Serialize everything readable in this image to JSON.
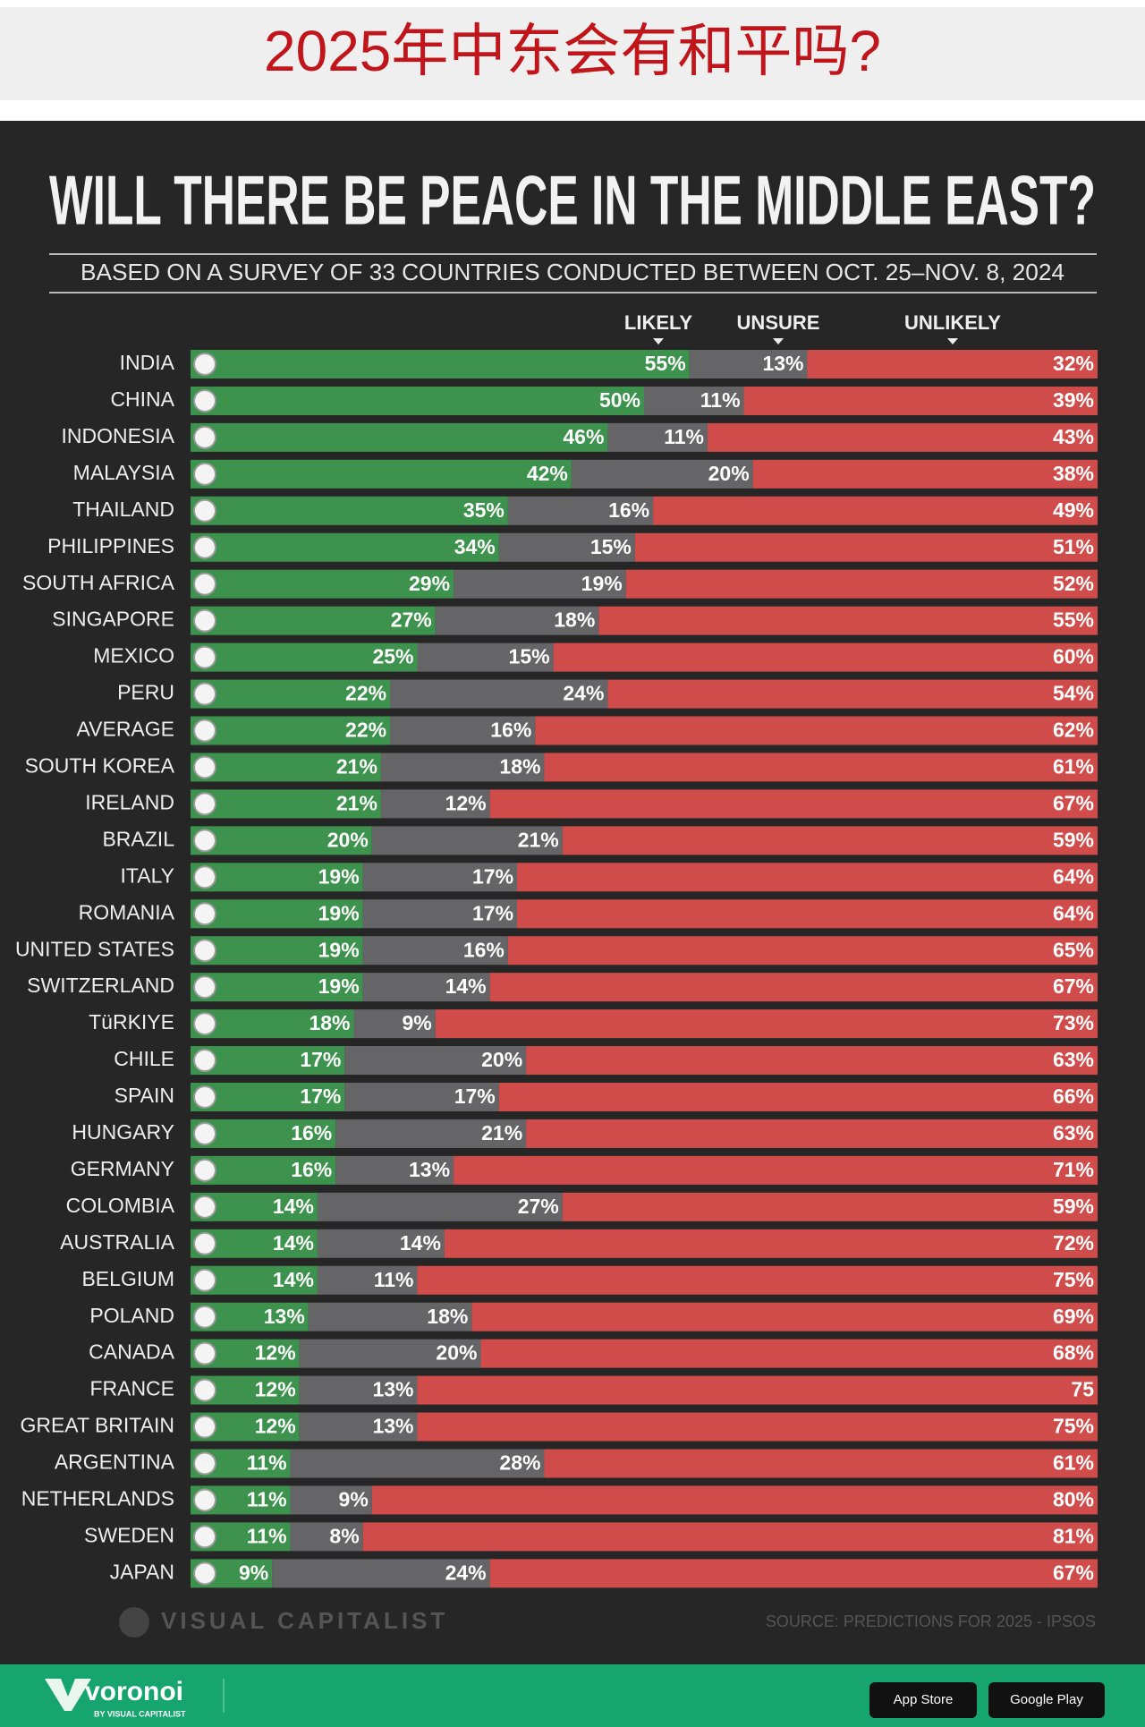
{
  "header": {
    "title": "2025年中东会有和平吗?"
  },
  "chart_data": {
    "type": "stacked-bar-horizontal",
    "title": "WILL THERE BE PEACE IN THE MIDDLE EAST?",
    "subtitle": "BASED ON A SURVEY OF 33 COUNTRIES CONDUCTED BETWEEN OCT. 25–NOV. 8, 2024",
    "source": "SOURCE: PREDICTIONS FOR 2025 - IPSOS",
    "brand": "VISUAL CAPITALIST",
    "xlim": [
      0,
      100
    ],
    "categories": [
      "INDIA",
      "CHINA",
      "INDONESIA",
      "MALAYSIA",
      "THAILAND",
      "PHILIPPINES",
      "SOUTH AFRICA",
      "SINGAPORE",
      "MEXICO",
      "PERU",
      "AVERAGE",
      "SOUTH KOREA",
      "IRELAND",
      "BRAZIL",
      "ITALY",
      "ROMANIA",
      "UNITED STATES",
      "SWITZERLAND",
      "TüRKIYE",
      "CHILE",
      "SPAIN",
      "HUNGARY",
      "GERMANY",
      "COLOMBIA",
      "AUSTRALIA",
      "BELGIUM",
      "POLAND",
      "CANADA",
      "FRANCE",
      "GREAT BRITAIN",
      "ARGENTINA",
      "NETHERLANDS",
      "SWEDEN",
      "JAPAN"
    ],
    "series": [
      {
        "name": "LIKELY",
        "color": "#3f9b50",
        "values": [
          55,
          50,
          46,
          42,
          35,
          34,
          29,
          27,
          25,
          22,
          22,
          21,
          21,
          20,
          19,
          19,
          19,
          19,
          18,
          17,
          17,
          16,
          16,
          14,
          14,
          14,
          13,
          12,
          12,
          12,
          11,
          11,
          11,
          9
        ],
        "value_labels": [
          "55%",
          "50%",
          "46%",
          "42%",
          "35%",
          "34%",
          "29%",
          "27%",
          "25%",
          "22%",
          "22%",
          "21%",
          "21%",
          "20%",
          "19%",
          "19%",
          "19%",
          "19%",
          "18%",
          "17%",
          "17%",
          "16%",
          "16%",
          "14%",
          "14%",
          "14%",
          "13%",
          "12%",
          "12%",
          "12%",
          "11%",
          "11%",
          "11%",
          "9%"
        ]
      },
      {
        "name": "UNSURE",
        "color": "#6a6a6e",
        "values": [
          13,
          11,
          11,
          20,
          16,
          15,
          19,
          18,
          15,
          24,
          16,
          18,
          12,
          21,
          17,
          17,
          16,
          14,
          9,
          20,
          17,
          21,
          13,
          27,
          14,
          11,
          18,
          20,
          13,
          13,
          28,
          9,
          8,
          24
        ],
        "value_labels": [
          "13%",
          "11%",
          "11%",
          "20%",
          "16%",
          "15%",
          "19%",
          "18%",
          "15%",
          "24%",
          "16%",
          "18%",
          "12%",
          "21%",
          "17%",
          "17%",
          "16%",
          "14%",
          "9%",
          "20%",
          "17%",
          "21%",
          "13%",
          "27%",
          "14%",
          "11%",
          "18%",
          "20%",
          "13%",
          "13%",
          "28%",
          "9%",
          "8%",
          "24%"
        ]
      },
      {
        "name": "UNLIKELY",
        "color": "#de4f4d",
        "values": [
          32,
          39,
          43,
          38,
          49,
          51,
          52,
          55,
          60,
          54,
          62,
          61,
          67,
          59,
          64,
          64,
          65,
          67,
          73,
          63,
          66,
          63,
          71,
          59,
          72,
          75,
          69,
          68,
          75,
          75,
          61,
          80,
          81,
          67
        ],
        "value_labels": [
          "32%",
          "39%",
          "43%",
          "38%",
          "49%",
          "51%",
          "52%",
          "55%",
          "60%",
          "54%",
          "62%",
          "61%",
          "67%",
          "59%",
          "64%",
          "64%",
          "65%",
          "67%",
          "73%",
          "63%",
          "66%",
          "63%",
          "71%",
          "59%",
          "72%",
          "75%",
          "69%",
          "68%",
          "75",
          "75%",
          "61%",
          "80%",
          "81%",
          "67%"
        ]
      }
    ]
  },
  "footer": {
    "logo": "voronoi",
    "tagline": "BY VISUAL CAPITALIST",
    "store1": "App Store",
    "store2": "Google Play"
  }
}
